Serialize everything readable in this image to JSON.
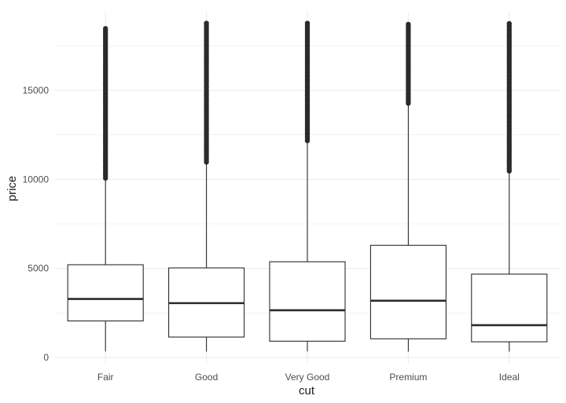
{
  "chart_data": {
    "type": "boxplot",
    "title": "",
    "xlabel": "cut",
    "ylabel": "price",
    "categories": [
      "Fair",
      "Good",
      "Very Good",
      "Premium",
      "Ideal"
    ],
    "ylim": [
      -300,
      19300
    ],
    "yticks": [
      0,
      5000,
      10000,
      15000
    ],
    "ytick_labels": [
      "0",
      "5000",
      "10000",
      "15000"
    ],
    "grid": true,
    "legend": "none",
    "boxes": [
      {
        "category": "Fair",
        "min": 337,
        "q1": 2050,
        "median": 3282,
        "q3": 5206,
        "whisker_high": 9950,
        "outliers_from": 9950,
        "max": 18574
      },
      {
        "category": "Good",
        "min": 327,
        "q1": 1145,
        "median": 3050,
        "q3": 5028,
        "whisker_high": 10850,
        "outliers_from": 10850,
        "max": 18788
      },
      {
        "category": "Very Good",
        "min": 336,
        "q1": 912,
        "median": 2648,
        "q3": 5373,
        "whisker_high": 12050,
        "outliers_from": 12050,
        "max": 18818
      },
      {
        "category": "Premium",
        "min": 326,
        "q1": 1046,
        "median": 3185,
        "q3": 6296,
        "whisker_high": 14150,
        "outliers_from": 14150,
        "max": 18823
      },
      {
        "category": "Ideal",
        "min": 326,
        "q1": 878,
        "median": 1810,
        "q3": 4678,
        "whisker_high": 10350,
        "outliers_from": 10350,
        "max": 18806
      }
    ],
    "colors": {
      "box_stroke": "#2b2b2b",
      "grid": "#ebebeb",
      "outlier": "#2b2b2b"
    }
  }
}
